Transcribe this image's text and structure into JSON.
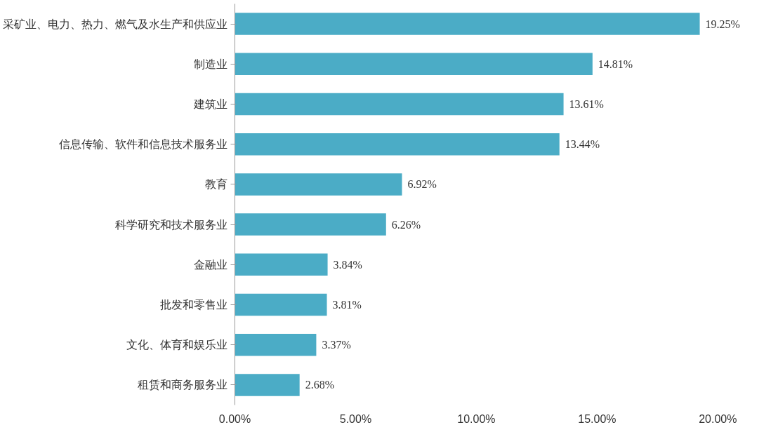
{
  "chart_data": {
    "type": "bar",
    "orientation": "horizontal",
    "categories": [
      "采矿业、电力、热力、燃气及水生产和供应业",
      "制造业",
      "建筑业",
      "信息传输、软件和信息技术服务业",
      "教育",
      "科学研究和技术服务业",
      "金融业",
      "批发和零售业",
      "文化、体育和娱乐业",
      "租赁和商务服务业"
    ],
    "values": [
      19.25,
      14.81,
      13.61,
      13.44,
      6.92,
      6.26,
      3.84,
      3.81,
      3.37,
      2.68
    ],
    "value_labels": [
      "19.25%",
      "14.81%",
      "13.61%",
      "13.44%",
      "6.92%",
      "6.26%",
      "3.84%",
      "3.81%",
      "3.37%",
      "2.68%"
    ],
    "color": "#4bacc6",
    "xlim": [
      0,
      20
    ],
    "xticks": [
      {
        "value": 0,
        "label": "0.00%"
      },
      {
        "value": 5,
        "label": "5.00%"
      },
      {
        "value": 10,
        "label": "10.00%"
      },
      {
        "value": 15,
        "label": "15.00%"
      },
      {
        "value": 20,
        "label": "20.00%"
      }
    ],
    "grid": false
  }
}
